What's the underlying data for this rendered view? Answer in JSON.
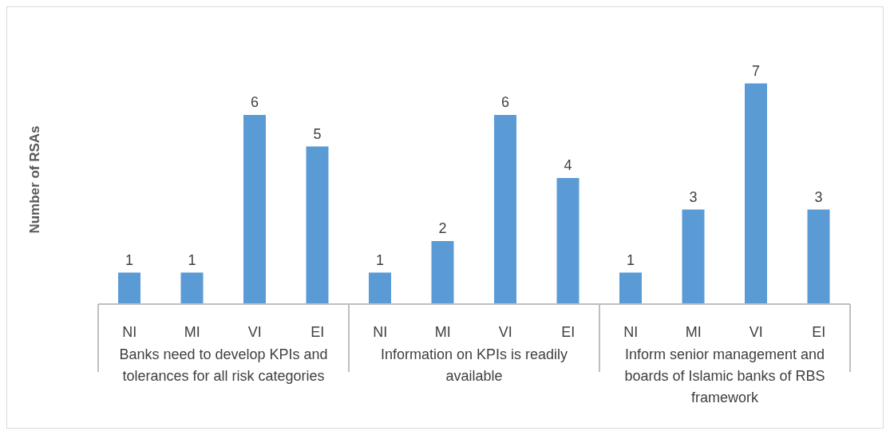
{
  "chart_data": {
    "type": "bar",
    "ylabel": "Number of RSAs",
    "categories": [
      "NI",
      "MI",
      "VI",
      "EI",
      "NI",
      "MI",
      "VI",
      "EI",
      "NI",
      "MI",
      "VI",
      "EI"
    ],
    "values": [
      1,
      1,
      6,
      5,
      1,
      2,
      6,
      4,
      1,
      3,
      7,
      3
    ],
    "color": "#5b9bd5",
    "data_labels": true,
    "grid": false,
    "legend": false,
    "annotations": [
      "Banks need to develop KPIs and tolerances for all risk categories",
      "Information on KPIs is readily available",
      "Inform senior management and boards of Islamic banks of RBS framework"
    ]
  }
}
